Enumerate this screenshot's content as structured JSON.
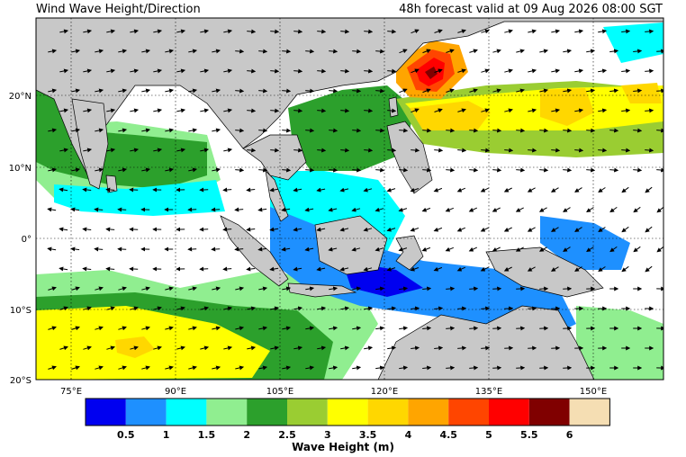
{
  "title": "Wind Wave Height/Direction",
  "forecast": "48h forecast valid at 09 Aug 2026 08:00 SGT",
  "lon_ticks": [
    "75°E",
    "90°E",
    "105°E",
    "120°E",
    "135°E",
    "150°E"
  ],
  "lat_ticks": [
    "20°N",
    "10°N",
    "0°",
    "10°S",
    "20°S"
  ],
  "colorbar": {
    "title": "Wave Height (m)",
    "tick_labels": [
      "0.5",
      "1",
      "1.5",
      "2",
      "2.5",
      "3",
      "3.5",
      "4",
      "4.5",
      "5",
      "5.5",
      "6"
    ],
    "colors": [
      "#0000f0",
      "#1e90ff",
      "#00ffff",
      "#90ee90",
      "#2ca02c",
      "#9acd32",
      "#ffff00",
      "#ffd700",
      "#ffa500",
      "#ff4500",
      "#ff0000",
      "#800000",
      "#f5deb3"
    ]
  },
  "map_colors": {
    "land": "#c8c8c8",
    "calm_sea": "#ffffff"
  }
}
